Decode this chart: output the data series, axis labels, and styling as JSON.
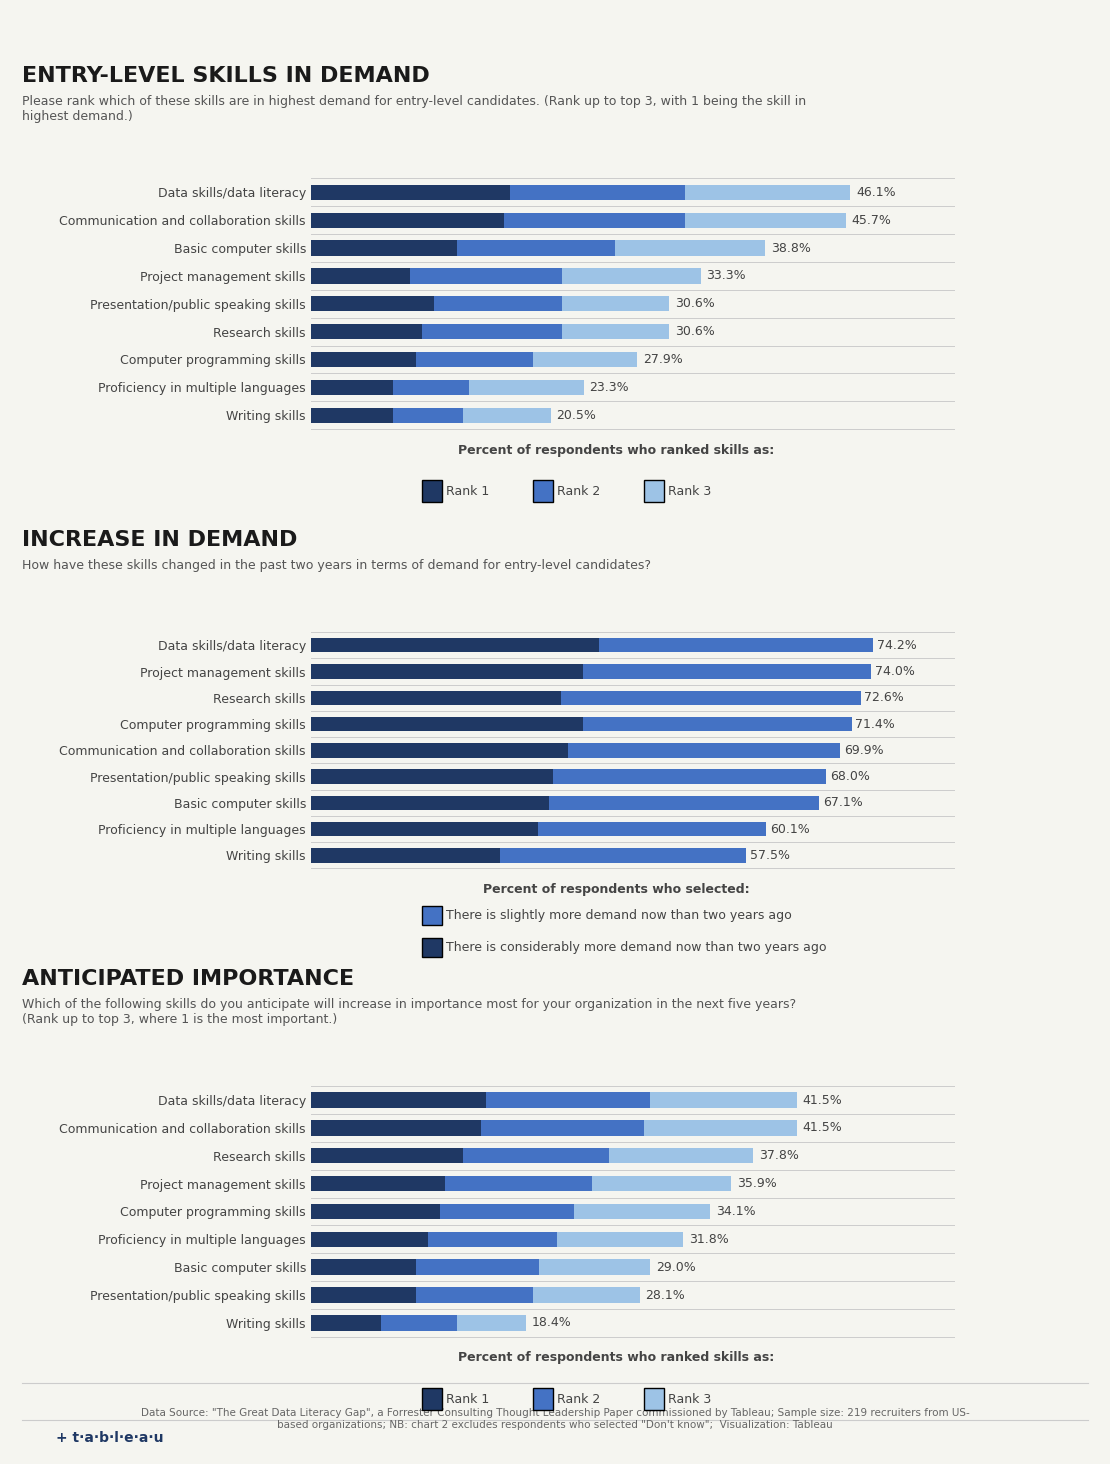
{
  "bg_color": "#f5f5f0",
  "chart_bg": "#f5f5f0",
  "section1_title": "ENTRY-LEVEL SKILLS IN DEMAND",
  "section1_subtitle": "Please rank which of these skills are in highest demand for entry-level candidates. (Rank up to top 3, with 1 being the skill in\nhighest demand.)",
  "section1_xlabel": "Percent of respondents who ranked skills as:",
  "section1_categories": [
    "Data skills/data literacy",
    "Communication and collaboration skills",
    "Basic computer skills",
    "Project management skills",
    "Presentation/public speaking skills",
    "Research skills",
    "Computer programming skills",
    "Proficiency in multiple languages",
    "Writing skills"
  ],
  "section1_totals": [
    46.1,
    45.7,
    38.8,
    33.3,
    30.6,
    30.6,
    27.9,
    23.3,
    20.5
  ],
  "section1_rank1": [
    17.0,
    16.5,
    12.5,
    8.5,
    10.5,
    9.5,
    9.0,
    7.0,
    7.0
  ],
  "section1_rank2": [
    15.0,
    15.5,
    13.5,
    13.0,
    11.0,
    12.0,
    10.0,
    6.5,
    6.0
  ],
  "section1_rank3": [
    14.1,
    13.7,
    12.8,
    11.8,
    9.1,
    9.1,
    8.9,
    9.8,
    7.5
  ],
  "section1_color1": "#1f3864",
  "section1_color2": "#4472c4",
  "section1_color3": "#9dc3e6",
  "section1_legend": [
    "Rank 1",
    "Rank 2",
    "Rank 3"
  ],
  "section2_title": "INCREASE IN DEMAND",
  "section2_subtitle": "How have these skills changed in the past two years in terms of demand for entry-level candidates?",
  "section2_xlabel": "Percent of respondents who selected:",
  "section2_categories": [
    "Data skills/data literacy",
    "Project management skills",
    "Research skills",
    "Computer programming skills",
    "Communication and collaboration skills",
    "Presentation/public speaking skills",
    "Basic computer skills",
    "Proficiency in multiple languages",
    "Writing skills"
  ],
  "section2_totals": [
    74.2,
    74.0,
    72.6,
    71.4,
    69.9,
    68.0,
    67.1,
    60.1,
    57.5
  ],
  "section2_considerably": [
    38.0,
    36.0,
    33.0,
    36.0,
    34.0,
    32.0,
    31.5,
    30.0,
    25.0
  ],
  "section2_slightly": [
    36.2,
    38.0,
    39.6,
    35.4,
    35.9,
    36.0,
    35.6,
    30.1,
    32.5
  ],
  "section2_color_considerably": "#1f3864",
  "section2_color_slightly": "#4472c4",
  "section2_legend": [
    "There is slightly more demand now than two years ago",
    "There is considerably more demand now than two years ago"
  ],
  "section3_title": "ANTICIPATED IMPORTANCE",
  "section3_subtitle": "Which of the following skills do you anticipate will increase in importance most for your organization in the next five years?\n(Rank up to top 3, where 1 is the most important.)",
  "section3_xlabel": "Percent of respondents who ranked skills as:",
  "section3_categories": [
    "Data skills/data literacy",
    "Communication and collaboration skills",
    "Research skills",
    "Project management skills",
    "Computer programming skills",
    "Proficiency in multiple languages",
    "Basic computer skills",
    "Presentation/public speaking skills",
    "Writing skills"
  ],
  "section3_totals": [
    41.5,
    41.5,
    37.8,
    35.9,
    34.1,
    31.8,
    29.0,
    28.1,
    18.4
  ],
  "section3_rank1": [
    15.0,
    14.5,
    13.0,
    11.5,
    11.0,
    10.0,
    9.0,
    9.0,
    6.0
  ],
  "section3_rank2": [
    14.0,
    14.0,
    12.5,
    12.5,
    11.5,
    11.0,
    10.5,
    10.0,
    6.5
  ],
  "section3_rank3": [
    12.5,
    13.0,
    12.3,
    11.9,
    11.6,
    10.8,
    9.5,
    9.1,
    5.9
  ],
  "section3_color1": "#1f3864",
  "section3_color2": "#4472c4",
  "section3_color3": "#9dc3e6",
  "section3_legend": [
    "Rank 1",
    "Rank 2",
    "Rank 3"
  ],
  "footer_text": "Data Source: \"The Great Data Literacy Gap\", a Forrester Consulting Thought Leadership Paper commissioned by Tableau; Sample size: 219 recruiters from US-\nbased organizations; NB: chart 2 excludes respondents who selected \"Don't know\";  Visualization: Tableau"
}
